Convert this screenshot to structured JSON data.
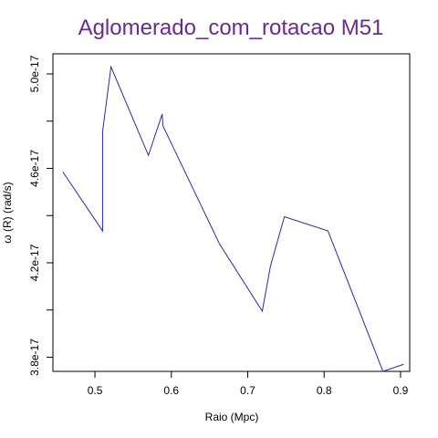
{
  "chart_data": {
    "type": "line",
    "title": "Aglomerado_com_rotacao M51",
    "xlabel": "Raio (Mpc)",
    "ylabel": "ω (R) (rad/s)",
    "x_ticks": [
      0.5,
      0.6,
      0.7,
      0.8,
      0.9
    ],
    "x_tick_labels": [
      "0.5",
      "0.6",
      "0.7",
      "0.8",
      "0.9"
    ],
    "y_ticks": [
      3.8e-17,
      4e-17,
      4.2e-17,
      4.4e-17,
      4.6e-17,
      4.8e-17,
      5e-17
    ],
    "y_tick_labels": [
      "3.8e-17",
      "",
      "4.2e-17",
      "",
      "4.6e-17",
      "",
      "5.0e-17"
    ],
    "xlim": [
      0.445,
      0.912
    ],
    "ylim": [
      3.74e-17,
      5.085e-17
    ],
    "line_color": "#2a2a9e",
    "series": [
      {
        "x": [
          0.458,
          0.51,
          0.51,
          0.521,
          0.57,
          0.588,
          0.589,
          0.663,
          0.719,
          0.73,
          0.748,
          0.805,
          0.877,
          0.904
        ],
        "y": [
          4.585e-17,
          4.335e-17,
          4.755e-17,
          5.03e-17,
          4.655e-17,
          4.83e-17,
          4.78e-17,
          4.28e-17,
          3.995e-17,
          4.19e-17,
          4.395e-17,
          4.335e-17,
          3.74e-17,
          3.77e-17
        ]
      }
    ]
  }
}
